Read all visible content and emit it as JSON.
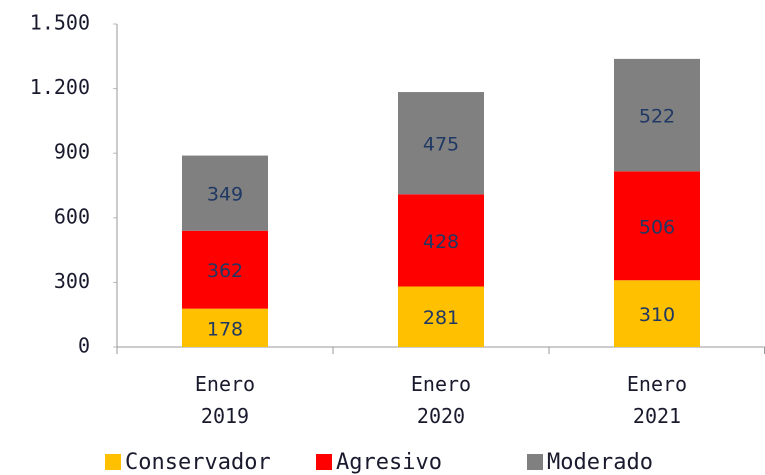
{
  "chart_data": {
    "type": "stacked_bar",
    "categories": [
      "Enero 2019",
      "Enero 2020",
      "Enero 2021"
    ],
    "series": [
      {
        "name": "Conservador",
        "color": "#ffc000",
        "values": [
          178,
          281,
          310
        ]
      },
      {
        "name": "Agresivo",
        "color": "#ff0000",
        "values": [
          362,
          428,
          506
        ]
      },
      {
        "name": "Moderado",
        "color": "#808080",
        "values": [
          349,
          475,
          522
        ]
      }
    ],
    "ylim": [
      0,
      1500
    ],
    "yticks": [
      0,
      300,
      600,
      900,
      {
        "value": 1200,
        "label": "1.200"
      },
      {
        "value": 1500,
        "label": "1.500"
      }
    ],
    "grid": false,
    "legend": "bottom"
  }
}
